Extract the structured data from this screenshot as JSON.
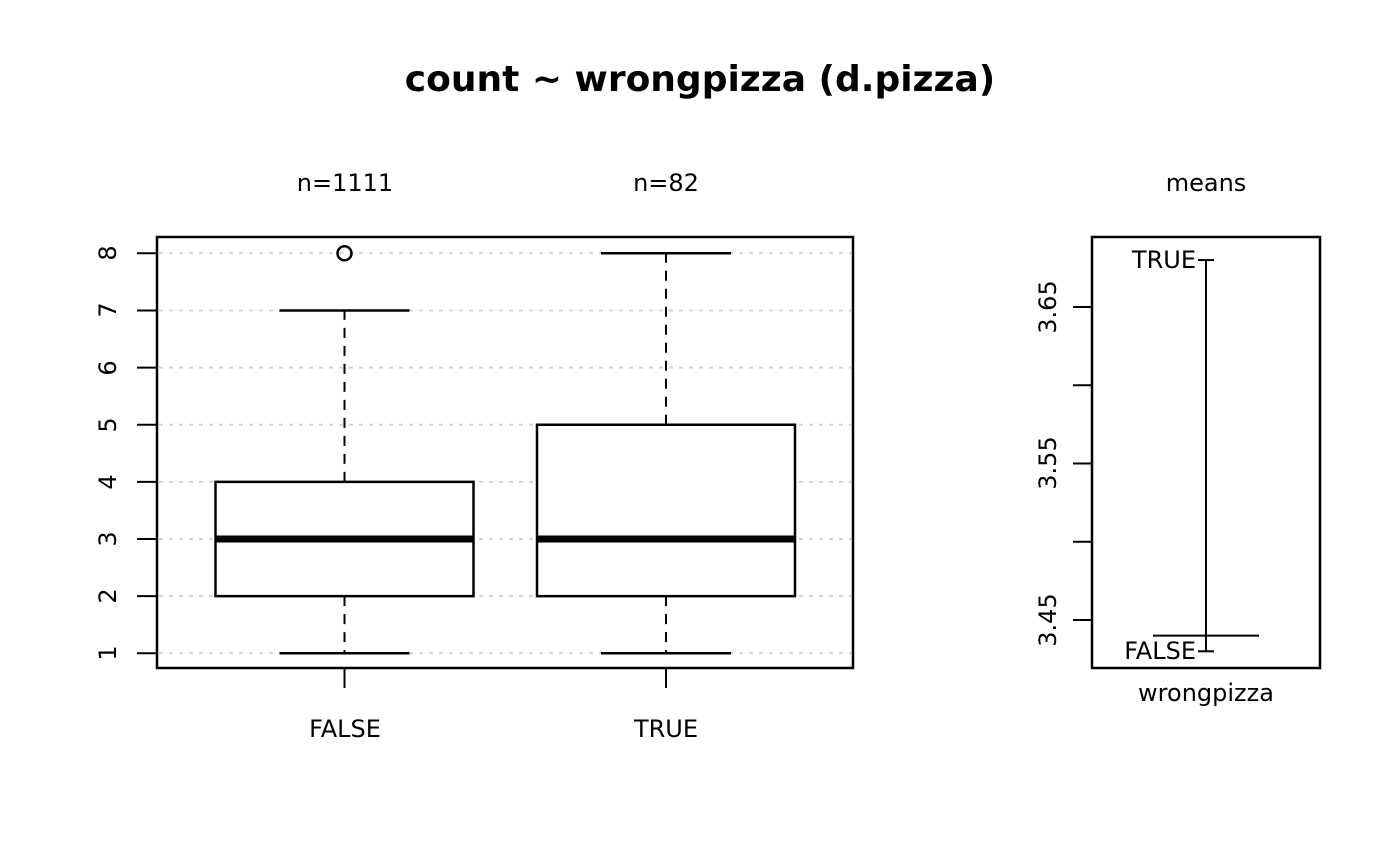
{
  "title": "count ~ wrongpizza (d.pizza)",
  "colors": {
    "foreground": "#000000",
    "grid": "#d3d3d3",
    "background": "#ffffff"
  },
  "chart_data": [
    {
      "type": "boxplot",
      "panel": "left",
      "subtitles": [
        "n=1111",
        "n=82"
      ],
      "categories": [
        "FALSE",
        "TRUE"
      ],
      "yticks": [
        1,
        2,
        3,
        4,
        5,
        6,
        7,
        8
      ],
      "ylim": [
        1,
        8
      ],
      "grid": "dotted horizontal gridlines at each integer",
      "series": [
        {
          "group": "FALSE",
          "n": 1111,
          "lower_whisker": 1,
          "q1": 2,
          "median": 3,
          "q3": 4,
          "upper_whisker": 7,
          "outliers": [
            8
          ]
        },
        {
          "group": "TRUE",
          "n": 82,
          "lower_whisker": 1,
          "q1": 2,
          "median": 3,
          "q3": 5,
          "upper_whisker": 8,
          "outliers": []
        }
      ]
    },
    {
      "type": "means",
      "panel": "right",
      "title": "means",
      "xlabel": "wrongpizza",
      "ytick_labels": [
        "3.45",
        "3.55",
        "3.65"
      ],
      "yticks": [
        3.45,
        3.5,
        3.55,
        3.6,
        3.65
      ],
      "ylim": [
        3.42,
        3.69
      ],
      "points": [
        {
          "group": "FALSE",
          "mean": 3.43
        },
        {
          "group": "TRUE",
          "mean": 3.68
        }
      ],
      "grand_mean": 3.44
    }
  ]
}
